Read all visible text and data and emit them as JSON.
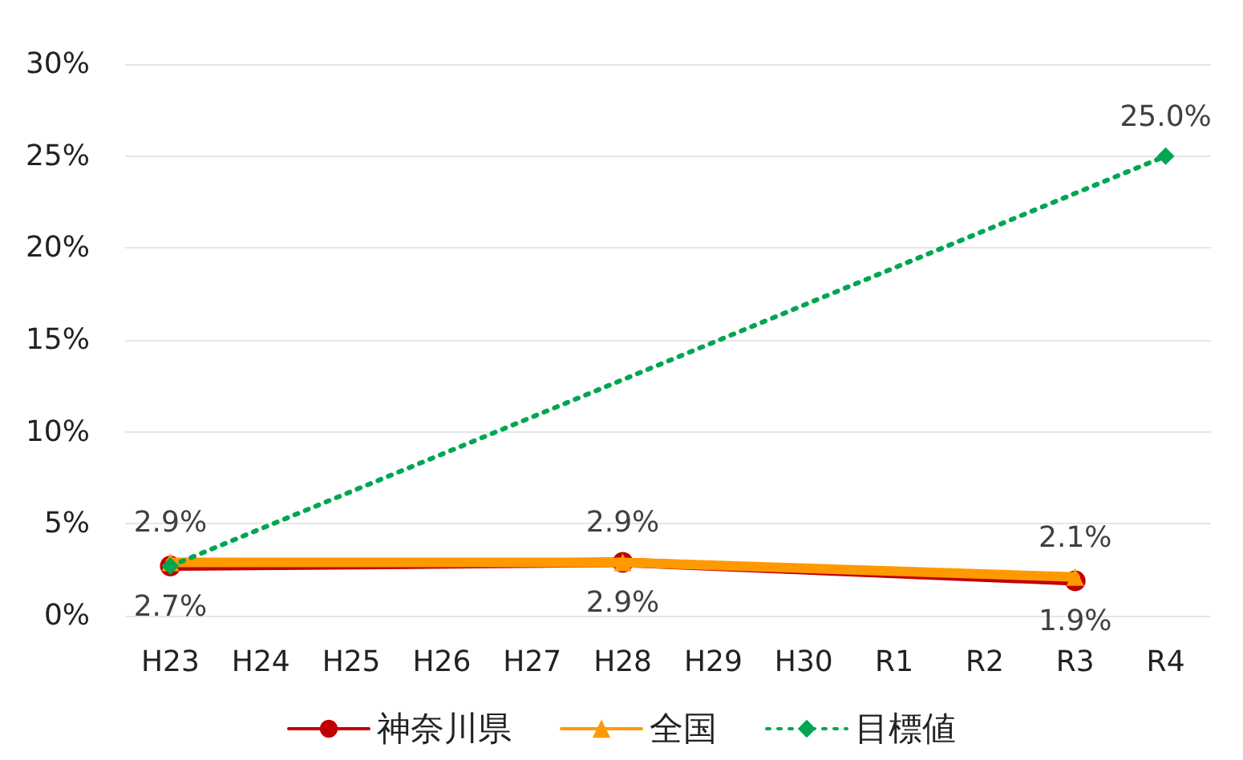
{
  "chart_data": {
    "type": "line",
    "categories": [
      "H23",
      "H24",
      "H25",
      "H26",
      "H27",
      "H28",
      "H29",
      "H30",
      "R1",
      "R2",
      "R3",
      "R4"
    ],
    "series": [
      {
        "name": "神奈川県",
        "color": "#c00000",
        "marker": "circle",
        "line_style": "solid",
        "values": [
          2.7,
          null,
          null,
          null,
          null,
          2.9,
          null,
          null,
          null,
          null,
          1.9,
          null
        ],
        "value_labels": [
          "2.7%",
          null,
          null,
          null,
          null,
          "2.9%",
          null,
          null,
          null,
          null,
          "1.9%",
          null
        ]
      },
      {
        "name": "全国",
        "color": "#ff9900",
        "marker": "triangle",
        "line_style": "solid",
        "values": [
          2.9,
          null,
          null,
          null,
          null,
          2.9,
          null,
          null,
          null,
          null,
          2.1,
          null
        ],
        "value_labels": [
          "2.9%",
          null,
          null,
          null,
          null,
          "2.9%",
          null,
          null,
          null,
          null,
          "2.1%",
          null
        ]
      },
      {
        "name": "目標値",
        "color": "#00a651",
        "marker": "diamond",
        "line_style": "dotted",
        "values": [
          2.7,
          null,
          null,
          null,
          null,
          null,
          null,
          null,
          null,
          null,
          null,
          25.0
        ],
        "value_labels": [
          null,
          null,
          null,
          null,
          null,
          null,
          null,
          null,
          null,
          null,
          null,
          "25.0%"
        ]
      }
    ],
    "ylim": [
      0,
      30
    ],
    "yticks": [
      {
        "value": 0,
        "label": "0%"
      },
      {
        "value": 5,
        "label": "5%"
      },
      {
        "value": 10,
        "label": "10%"
      },
      {
        "value": 15,
        "label": "15%"
      },
      {
        "value": 20,
        "label": "20%"
      },
      {
        "value": 25,
        "label": "25%"
      },
      {
        "value": 30,
        "label": "30%"
      }
    ],
    "grid": "y",
    "legend": "bottom"
  }
}
